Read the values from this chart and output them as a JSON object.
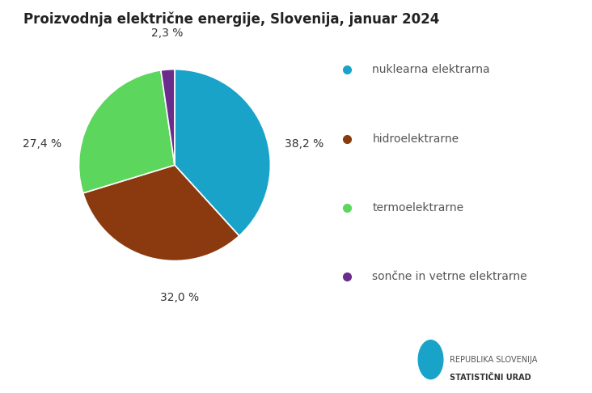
{
  "title": "Proizvodnja električne energije, Slovenija, januar 2024",
  "slices": [
    38.2,
    32.0,
    27.4,
    2.3
  ],
  "labels": [
    "nuklearna elektrarna",
    "hidroelektrarne",
    "termoelektrarne",
    "sončne in vetrne elektrarne"
  ],
  "colors": [
    "#1aa3c8",
    "#8b3a0f",
    "#5cd65c",
    "#6b2d8b"
  ],
  "pct_labels": [
    "38,2 %",
    "32,0 %",
    "27,4 %",
    "2,3 %"
  ],
  "background_color": "#ffffff",
  "footer_color": "#ebebeb",
  "title_fontsize": 12,
  "legend_fontsize": 10,
  "pct_fontsize": 10
}
